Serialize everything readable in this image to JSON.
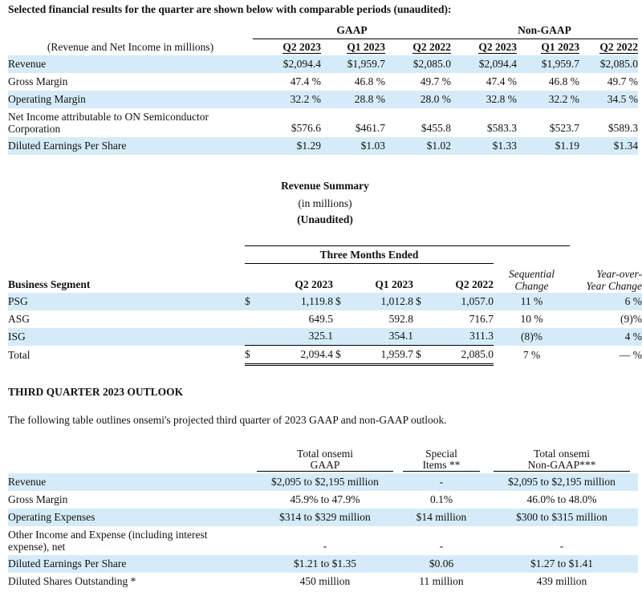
{
  "title": "Selected financial results for the quarter are shown below with comparable periods (unaudited):",
  "t1": {
    "group_gaap": "GAAP",
    "group_nongaap": "Non-GAAP",
    "label_header": "(Revenue and Net Income in millions)",
    "cols": [
      "Q2 2023",
      "Q1 2023",
      "Q2 2022",
      "Q2 2023",
      "Q1 2023",
      "Q2 2022"
    ],
    "rows": [
      {
        "label": "Revenue",
        "v": [
          "$2,094.4",
          "$1,959.7",
          "$2,085.0",
          "$2,094.4",
          "$1,959.7",
          "$2,085.0"
        ]
      },
      {
        "label": "Gross Margin",
        "v": [
          "47.4 %",
          "46.8 %",
          "49.7 %",
          "47.4 %",
          "46.8 %",
          "49.7 %"
        ]
      },
      {
        "label": "Operating Margin",
        "v": [
          "32.2 %",
          "28.8 %",
          "28.0 %",
          "32.8 %",
          "32.2 %",
          "34.5 %"
        ]
      },
      {
        "label": "Net Income attributable to ON Semiconductor",
        "label2": "Corporation",
        "v": [
          "$576.6",
          "$461.7",
          "$455.8",
          "$583.3",
          "$523.7",
          "$589.3"
        ]
      },
      {
        "label": "Diluted Earnings Per Share",
        "v": [
          "$1.29",
          "$1.03",
          "$1.02",
          "$1.33",
          "$1.19",
          "$1.34"
        ]
      }
    ]
  },
  "summary": {
    "title": "Revenue Summary",
    "sub": "(in millions)",
    "unaudited": "(Unaudited)"
  },
  "t2": {
    "group": "Three Months Ended",
    "seg_header": "Business Segment",
    "cols": [
      "Q2 2023",
      "Q1 2023",
      "Q2 2022"
    ],
    "seq_header": [
      "Sequential",
      "Change"
    ],
    "yoy_header": [
      "Year-over-",
      "Year Change"
    ],
    "rows": [
      {
        "label": "PSG",
        "d1": "$",
        "v1": "1,119.8",
        "d2": "$",
        "v2": "1,012.8",
        "d3": "$",
        "v3": "1,057.0",
        "seq": "11 %",
        "yoy": "6 %"
      },
      {
        "label": "ASG",
        "d1": "",
        "v1": "649.5",
        "d2": "",
        "v2": "592.8",
        "d3": "",
        "v3": "716.7",
        "seq": "10 %",
        "yoy": "(9)%"
      },
      {
        "label": "ISG",
        "d1": "",
        "v1": "325.1",
        "d2": "",
        "v2": "354.1",
        "d3": "",
        "v3": "311.3",
        "seq": "(8)%",
        "yoy": "4 %"
      },
      {
        "label": "Total",
        "d1": "$",
        "v1": "2,094.4",
        "d2": "$",
        "v2": "1,959.7",
        "d3": "$",
        "v3": "2,085.0",
        "seq": "7 %",
        "yoy": "— %"
      }
    ]
  },
  "outlook": {
    "heading": "THIRD QUARTER 2023 OUTLOOK",
    "intro": "The following table outlines onsemi's projected third quarter of 2023 GAAP and non-GAAP outlook."
  },
  "t3": {
    "h1": [
      "Total onsemi",
      "GAAP"
    ],
    "h2": [
      "Special",
      "Items **"
    ],
    "h3": [
      "Total onsemi",
      "Non-GAAP***"
    ],
    "rows": [
      {
        "label": "Revenue",
        "a": "$2,095 to $2,195 million",
        "b": "-",
        "c": "$2,095 to $2,195 million"
      },
      {
        "label": "Gross Margin",
        "a": "45.9% to 47.9%",
        "b": "0.1%",
        "c": "46.0% to 48.0%"
      },
      {
        "label": "Operating Expenses",
        "a": "$314 to $329 million",
        "b": "$14 million",
        "c": "$300 to $315 million"
      },
      {
        "label": "Other Income and Expense (including interest",
        "label2": "expense), net",
        "a": "-",
        "b": "-",
        "c": "-"
      },
      {
        "label": "Diluted Earnings Per Share",
        "a": "$1.21 to $1.35",
        "b": "$0.06",
        "c": "$1.27 to $1.41"
      },
      {
        "label": "Diluted Shares Outstanding *",
        "a": "450 million",
        "b": "11 million",
        "c": "439 million"
      }
    ]
  }
}
